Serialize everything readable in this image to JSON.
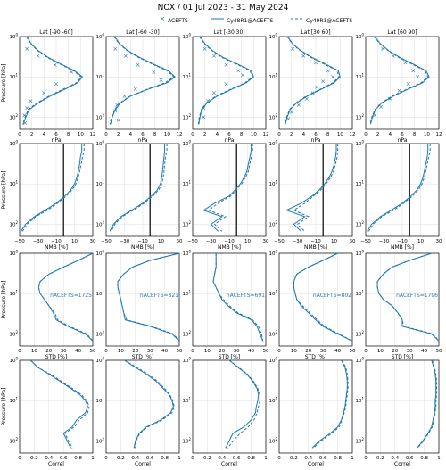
{
  "figure": {
    "title": "NOX / 01 Jul 2023 - 31 May 2024",
    "legend": [
      "ACEFTS",
      "Cy48R1@ACEFTS",
      "Cy49R1@ACEFTS"
    ],
    "ylabel": "Pressure [hPa]",
    "colors": {
      "series": "#1f77b4",
      "grid": "#dddddd",
      "zero_line": "#000000"
    }
  },
  "chart_data": [
    {
      "type": "line",
      "row": "concentration",
      "panel_titles": [
        "Lat [-90 -60]",
        "Lat [-60 -30]",
        "Lat [-30 30]",
        "Lat [30 60]",
        "Lat [60 90]"
      ],
      "xlabel": "nPa",
      "xlim": [
        0,
        12
      ],
      "xticks": [
        "0",
        "2",
        "4",
        "6",
        "8",
        "10",
        "12"
      ],
      "ylim_log": [
        1,
        200
      ],
      "yticks": [
        "10^0",
        "10^1",
        "10^2"
      ],
      "yscale": "log",
      "y_levels": [
        1.0,
        1.5,
        2.2,
        3.3,
        5.0,
        7.0,
        10.0,
        14.0,
        20.0,
        30.0,
        45.0,
        65.0,
        100.0,
        150.0
      ],
      "panels": [
        {
          "acefts": [
            [
              1.2,
              2
            ],
            [
              3,
              3
            ],
            [
              5.8,
              5
            ],
            [
              8.5,
              7.5
            ],
            [
              6,
              15
            ],
            [
              4,
              25
            ],
            [
              1.8,
              40
            ],
            [
              1.2,
              60
            ],
            [
              0.8,
              90
            ],
            [
              0.9,
              140
            ]
          ],
          "cy48": [
            1.2,
            1.9,
            3.0,
            4.7,
            7.0,
            9.0,
            10.3,
            9.5,
            7.5,
            5.0,
            3.0,
            1.6,
            1.0,
            0.6
          ],
          "cy49": [
            1.1,
            1.8,
            2.9,
            4.5,
            6.8,
            8.8,
            10.1,
            9.3,
            7.2,
            4.8,
            2.8,
            1.4,
            0.9,
            0.5
          ]
        },
        {
          "acefts": [
            [
              1.5,
              2
            ],
            [
              3.2,
              3
            ],
            [
              5.2,
              5
            ],
            [
              7.8,
              7.5
            ],
            [
              9,
              12
            ],
            [
              4.8,
              20
            ],
            [
              3,
              30
            ],
            [
              1.8,
              50
            ],
            [
              1.5,
              70
            ],
            [
              2,
              120
            ]
          ],
          "cy48": [
            1.4,
            2.2,
            3.5,
            5.5,
            8.0,
            10.2,
            11.3,
            10.0,
            7.0,
            4.0,
            2.3,
            1.5,
            1.0,
            0.7
          ],
          "cy49": [
            1.3,
            2.1,
            3.4,
            5.3,
            7.8,
            10.0,
            11.1,
            9.7,
            6.8,
            3.9,
            2.2,
            1.4,
            0.9,
            0.6
          ]
        },
        {
          "acefts": [
            [
              2,
              2
            ],
            [
              3.5,
              3
            ],
            [
              5.5,
              5
            ],
            [
              7.5,
              7
            ],
            [
              8.2,
              9
            ],
            [
              5.5,
              15
            ],
            [
              3.5,
              25
            ],
            [
              2.5,
              40
            ],
            [
              1.8,
              60
            ],
            [
              1.8,
              100
            ]
          ],
          "cy48": [
            1.2,
            2.0,
            3.2,
            5.0,
            7.6,
            9.6,
            10.0,
            8.8,
            6.5,
            4.0,
            2.3,
            1.5,
            1.2,
            1.0
          ],
          "cy49": [
            1.1,
            1.9,
            3.1,
            4.8,
            7.4,
            9.4,
            9.8,
            8.6,
            6.3,
            3.8,
            2.2,
            1.4,
            1.1,
            0.9
          ]
        },
        {
          "acefts": [
            [
              2.2,
              2
            ],
            [
              4,
              3
            ],
            [
              6,
              4.5
            ],
            [
              8,
              7
            ],
            [
              8.8,
              10
            ],
            [
              7.2,
              13
            ],
            [
              6.2,
              18
            ],
            [
              5.5,
              25
            ],
            [
              4.5,
              35
            ],
            [
              3.2,
              50
            ],
            [
              2,
              75
            ],
            [
              1.5,
              110
            ]
          ],
          "cy48": [
            1.4,
            2.2,
            3.5,
            5.4,
            7.8,
            9.7,
            10.0,
            9.0,
            7.0,
            4.6,
            2.8,
            1.8,
            1.3,
            1.0
          ],
          "cy49": [
            1.3,
            2.1,
            3.4,
            5.2,
            7.6,
            9.5,
            9.8,
            8.8,
            6.8,
            4.4,
            2.7,
            1.7,
            1.2,
            0.9
          ]
        },
        {
          "acefts": [
            [
              2.8,
              2
            ],
            [
              4.5,
              3
            ],
            [
              6.5,
              4.5
            ],
            [
              7.8,
              7
            ],
            [
              8.5,
              10
            ],
            [
              7,
              15
            ],
            [
              5.5,
              22
            ],
            [
              4,
              35
            ],
            [
              2.5,
              55
            ],
            [
              1.5,
              90
            ]
          ],
          "cy48": [
            1.5,
            2.4,
            3.7,
            5.6,
            8.0,
            9.9,
            10.4,
            9.3,
            7.0,
            4.5,
            2.6,
            1.6,
            1.1,
            0.8
          ],
          "cy49": [
            1.4,
            2.3,
            3.6,
            5.4,
            7.8,
            9.7,
            10.2,
            9.1,
            6.8,
            4.3,
            2.5,
            1.5,
            1.0,
            0.7
          ]
        }
      ]
    },
    {
      "type": "line",
      "row": "NMB",
      "xlabel": "NMB [%]",
      "xlim": [
        -50,
        50
      ],
      "xticks": [
        "−50",
        "−30",
        "−10",
        "10",
        "30"
      ],
      "yscale": "log",
      "y_levels": [
        1.0,
        1.5,
        2.2,
        3.3,
        5.0,
        7.0,
        10.0,
        14.0,
        20.0,
        30.0,
        45.0,
        65.0,
        100.0,
        150.0
      ],
      "zero_line": 10,
      "panels": [
        {
          "cy48": [
            35,
            35,
            33,
            32,
            30,
            28,
            25,
            20,
            12,
            0,
            -15,
            -30,
            -42,
            -48
          ],
          "cy49": [
            38,
            38,
            36,
            34,
            32,
            30,
            27,
            22,
            14,
            2,
            -12,
            -28,
            -40,
            -46
          ]
        },
        {
          "cy48": [
            30,
            30,
            29,
            28,
            27,
            26,
            24,
            20,
            12,
            0,
            -15,
            -30,
            -40,
            -45
          ],
          "cy49": [
            33,
            33,
            31,
            30,
            29,
            28,
            26,
            22,
            14,
            2,
            -13,
            -28,
            -38,
            -43
          ]
        },
        {
          "cy48": [
            30,
            30,
            28,
            26,
            24,
            20,
            15,
            8,
            0,
            -20,
            -35,
            -10,
            -25,
            -15
          ],
          "cy49": [
            32,
            32,
            30,
            28,
            26,
            22,
            17,
            10,
            2,
            -15,
            -28,
            -5,
            -20,
            -10
          ]
        },
        {
          "cy48": [
            28,
            28,
            27,
            25,
            22,
            18,
            12,
            5,
            -5,
            -20,
            -40,
            -15,
            -30,
            -20
          ],
          "cy49": [
            30,
            30,
            29,
            27,
            24,
            20,
            14,
            7,
            -3,
            -15,
            -30,
            -10,
            -25,
            -15
          ]
        },
        {
          "cy48": [
            35,
            35,
            34,
            32,
            30,
            28,
            25,
            20,
            12,
            0,
            -15,
            -30,
            -42,
            -48
          ],
          "cy49": [
            38,
            38,
            36,
            34,
            32,
            30,
            27,
            22,
            14,
            2,
            -12,
            -28,
            -40,
            -46
          ]
        }
      ]
    },
    {
      "type": "line",
      "row": "STD",
      "xlabel": "STD [%]",
      "xlim": [
        0,
        50
      ],
      "xticks": [
        "0",
        "10",
        "20",
        "30",
        "40",
        "50"
      ],
      "yscale": "log",
      "y_levels": [
        1.0,
        1.5,
        2.2,
        3.3,
        5.0,
        7.0,
        10.0,
        14.0,
        20.0,
        30.0,
        45.0,
        65.0,
        100.0,
        150.0
      ],
      "annotations": [
        "nACEFTS=1725",
        "nACEFTS=821",
        "nACEFTS=691",
        "nACEFTS=802",
        "nACEFTS=1796"
      ],
      "panels": [
        {
          "cy48": [
            50,
            40,
            30,
            20,
            14,
            13,
            14,
            17,
            20,
            23,
            25,
            33,
            45,
            50
          ],
          "cy49": [
            50,
            40,
            30,
            20,
            14,
            13,
            14,
            17,
            20,
            24,
            26,
            34,
            46,
            50
          ]
        },
        {
          "cy48": [
            50,
            30,
            18,
            12,
            8,
            8,
            9,
            10,
            11,
            12,
            13,
            30,
            45,
            50
          ],
          "cy49": [
            50,
            30,
            18,
            12,
            8,
            8,
            9,
            10,
            11,
            12,
            14,
            31,
            46,
            50
          ]
        },
        {
          "cy48": [
            16,
            16,
            16,
            15,
            14,
            16,
            18,
            20,
            24,
            30,
            40,
            44,
            46,
            48
          ],
          "cy49": [
            16,
            16,
            16,
            15,
            14,
            16,
            18,
            21,
            25,
            31,
            41,
            45,
            47,
            48
          ]
        },
        {
          "cy48": [
            40,
            30,
            20,
            12,
            10,
            10,
            11,
            12,
            15,
            20,
            25,
            30,
            40,
            50
          ],
          "cy49": [
            40,
            30,
            20,
            12,
            10,
            10,
            11,
            12,
            16,
            21,
            26,
            31,
            41,
            50
          ]
        },
        {
          "cy48": [
            45,
            30,
            18,
            12,
            8,
            8,
            9,
            12,
            18,
            22,
            25,
            25,
            45,
            50
          ],
          "cy49": [
            45,
            30,
            18,
            12,
            8,
            8,
            9,
            12,
            18,
            22,
            25,
            26,
            46,
            50
          ]
        }
      ]
    },
    {
      "type": "line",
      "row": "Correl",
      "xlabel": "Correl",
      "xlim": [
        0,
        1
      ],
      "xticks": [
        "0",
        "0.2",
        "0.4",
        "0.6",
        "0.8",
        "1"
      ],
      "yscale": "log",
      "y_levels": [
        1.0,
        1.5,
        2.2,
        3.3,
        5.0,
        7.0,
        10.0,
        14.0,
        20.0,
        30.0,
        45.0,
        65.0,
        100.0,
        150.0
      ],
      "panels": [
        {
          "cy48": [
            0.15,
            0.25,
            0.4,
            0.55,
            0.7,
            0.82,
            0.9,
            0.93,
            0.9,
            0.78,
            0.72,
            0.6,
            0.65,
            0.7
          ],
          "cy49": [
            0.15,
            0.25,
            0.42,
            0.57,
            0.72,
            0.84,
            0.92,
            0.95,
            0.93,
            0.82,
            0.75,
            0.62,
            0.67,
            0.72
          ]
        },
        {
          "cy48": [
            0.25,
            0.4,
            0.55,
            0.68,
            0.78,
            0.86,
            0.9,
            0.92,
            0.88,
            0.75,
            0.55,
            0.45,
            0.4,
            0.38
          ],
          "cy49": [
            0.25,
            0.42,
            0.57,
            0.7,
            0.8,
            0.87,
            0.91,
            0.93,
            0.9,
            0.77,
            0.57,
            0.46,
            0.41,
            0.39
          ]
        },
        {
          "cy48": [
            0.5,
            0.62,
            0.74,
            0.82,
            0.88,
            0.9,
            0.89,
            0.87,
            0.86,
            0.8,
            0.7,
            0.55,
            0.5,
            0.45
          ],
          "cy49": [
            0.5,
            0.63,
            0.75,
            0.83,
            0.89,
            0.92,
            0.92,
            0.9,
            0.88,
            0.84,
            0.76,
            0.65,
            0.55,
            0.48
          ]
        },
        {
          "cy48": [
            0.85,
            0.9,
            0.92,
            0.93,
            0.93,
            0.92,
            0.91,
            0.9,
            0.88,
            0.85,
            0.8,
            0.7,
            0.55,
            0.45
          ],
          "cy49": [
            0.86,
            0.91,
            0.93,
            0.94,
            0.94,
            0.93,
            0.92,
            0.91,
            0.89,
            0.86,
            0.82,
            0.72,
            0.57,
            0.47
          ]
        },
        {
          "cy48": [
            0.9,
            0.93,
            0.95,
            0.96,
            0.96,
            0.96,
            0.95,
            0.95,
            0.94,
            0.92,
            0.9,
            0.85,
            0.78,
            0.7
          ],
          "cy49": [
            0.91,
            0.94,
            0.96,
            0.97,
            0.97,
            0.97,
            0.96,
            0.96,
            0.95,
            0.93,
            0.91,
            0.86,
            0.79,
            0.71
          ]
        }
      ]
    }
  ]
}
